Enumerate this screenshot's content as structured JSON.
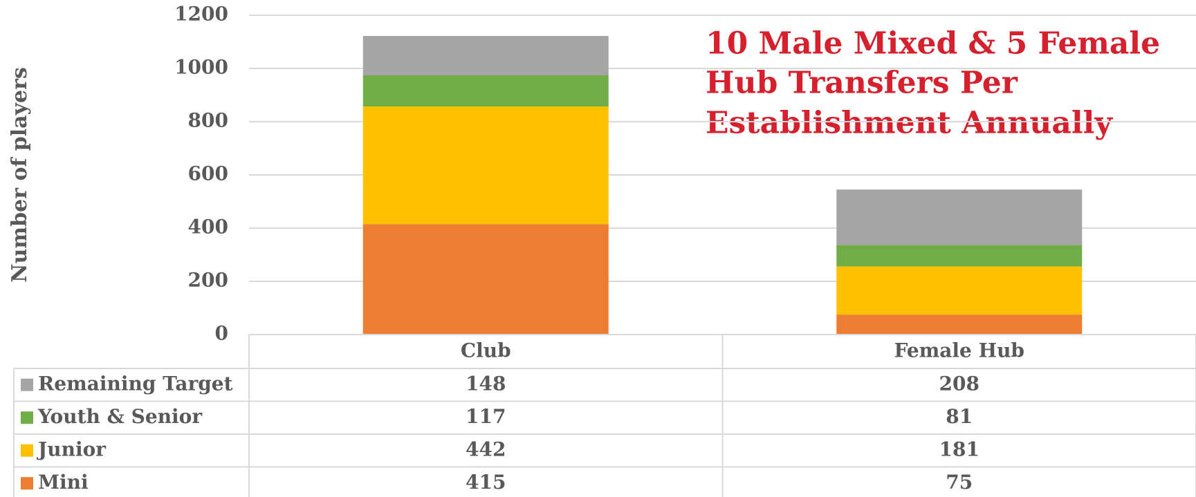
{
  "chart_data": {
    "type": "bar",
    "stacked": true,
    "annotation": [
      "10 Male Mixed & 5 Female",
      "Hub Transfers Per",
      "Establishment Annually"
    ],
    "y_axis_label": "Number of players",
    "categories": [
      "Club",
      "Female Hub"
    ],
    "series": [
      {
        "name": "Remaining Target",
        "color": "#a5a5a5",
        "values": [
          148,
          208
        ]
      },
      {
        "name": "Youth & Senior",
        "color": "#70ad47",
        "values": [
          117,
          81
        ]
      },
      {
        "name": "Junior",
        "color": "#ffc000",
        "values": [
          442,
          181
        ]
      },
      {
        "name": "Mini",
        "color": "#ed7d31",
        "values": [
          415,
          75
        ]
      }
    ],
    "ylim": [
      0,
      1200
    ],
    "yticks": [
      0,
      200,
      400,
      600,
      800,
      1000,
      1200
    ],
    "grid": true,
    "data_table": true
  }
}
